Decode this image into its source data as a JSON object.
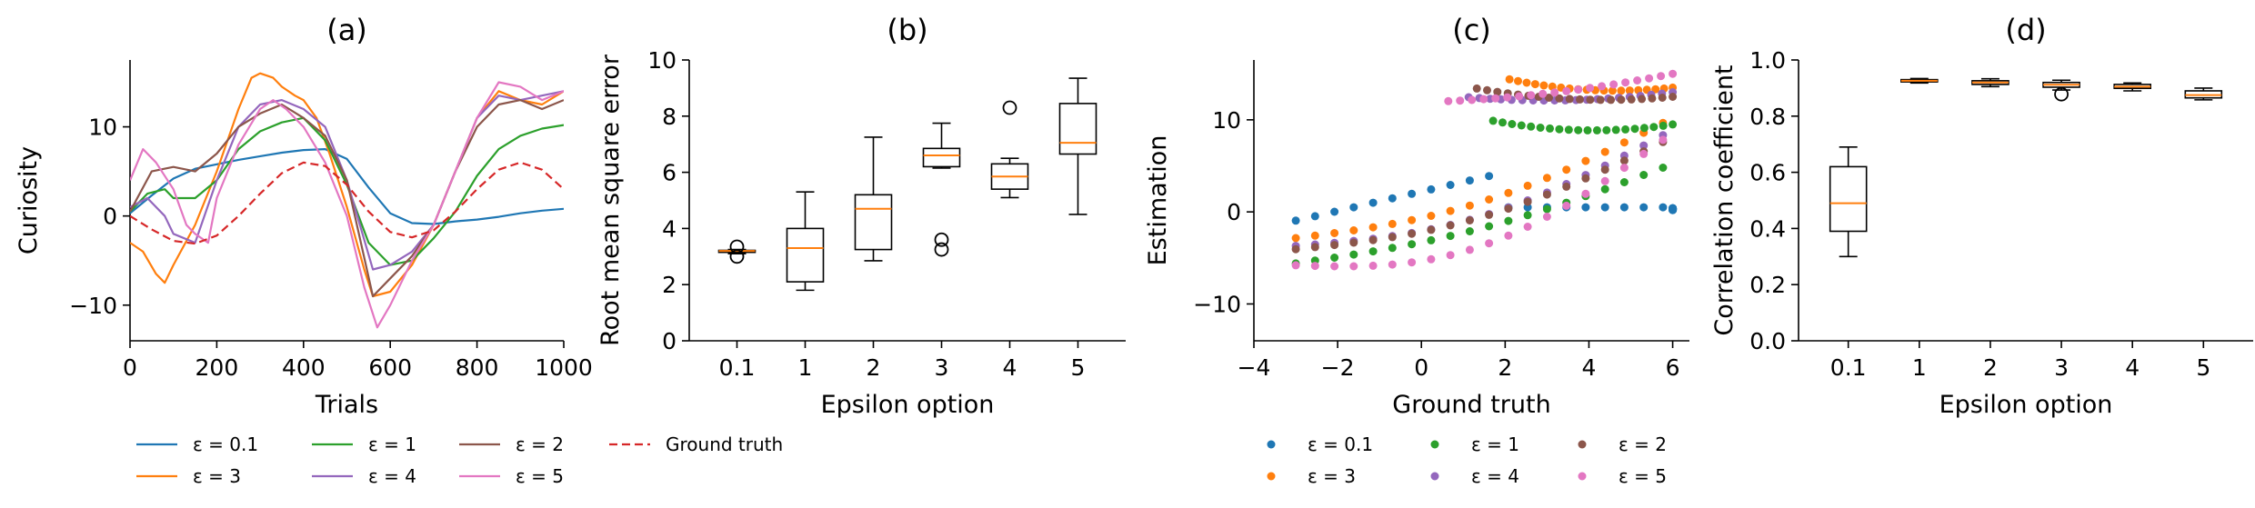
{
  "colors": {
    "blue": "#1f77b4",
    "orange": "#ff7f0e",
    "green": "#2ca02c",
    "red": "#d62728",
    "purple": "#9467bd",
    "brown": "#8c564b",
    "pink": "#e377c2",
    "black": "#000000"
  },
  "chart_data": [
    {
      "id": "a",
      "type": "line",
      "title": "(a)",
      "xlabel": "Trials",
      "ylabel": "Curiosity",
      "xlim": [
        0,
        1000
      ],
      "ylim": [
        -14,
        17.5
      ],
      "xticks": [
        0,
        200,
        400,
        600,
        800,
        1000
      ],
      "xtick_labels": [
        "0",
        "200",
        "400",
        "600",
        "800",
        "1000"
      ],
      "yticks": [
        -10,
        0,
        10
      ],
      "ytick_labels": [
        "−10",
        "0",
        "10"
      ],
      "legend_position": "below",
      "series": [
        {
          "name": "ε = 0.1",
          "color": "blue",
          "dash": false,
          "x": [
            0,
            50,
            100,
            150,
            200,
            250,
            300,
            350,
            400,
            450,
            500,
            550,
            600,
            650,
            700,
            750,
            800,
            850,
            900,
            950,
            1000
          ],
          "y": [
            0.3,
            2.3,
            4.2,
            5.3,
            5.8,
            6.3,
            6.7,
            7.1,
            7.4,
            7.5,
            6.4,
            3.2,
            0.3,
            -0.8,
            -0.9,
            -0.6,
            -0.4,
            -0.1,
            0.3,
            0.6,
            0.8
          ]
        },
        {
          "name": "ε = 3",
          "color": "orange",
          "dash": false,
          "x": [
            0,
            30,
            60,
            80,
            100,
            150,
            200,
            250,
            280,
            300,
            330,
            350,
            380,
            400,
            430,
            460,
            500,
            540,
            560,
            600,
            650,
            700,
            750,
            800,
            850,
            900,
            950,
            1000
          ],
          "y": [
            -3,
            -4,
            -6.5,
            -7.5,
            -5.5,
            -1,
            5,
            12,
            15.5,
            16,
            15.5,
            14.5,
            13.5,
            13,
            11,
            7,
            1,
            -6,
            -9,
            -8.5,
            -5.5,
            -1,
            5,
            11,
            14,
            13,
            12.5,
            14
          ]
        },
        {
          "name": "ε = 1",
          "color": "green",
          "dash": false,
          "x": [
            0,
            40,
            80,
            100,
            150,
            200,
            250,
            300,
            350,
            400,
            450,
            500,
            550,
            600,
            650,
            700,
            750,
            800,
            850,
            900,
            950,
            1000
          ],
          "y": [
            0.5,
            2.5,
            3,
            2,
            2,
            4,
            7.5,
            9.5,
            10.5,
            11,
            8.5,
            3.5,
            -3,
            -5.5,
            -5,
            -2.5,
            0.5,
            4.5,
            7.5,
            9,
            9.8,
            10.2
          ]
        },
        {
          "name": "ε = 4",
          "color": "purple",
          "dash": false,
          "x": [
            0,
            40,
            80,
            100,
            150,
            200,
            250,
            300,
            350,
            400,
            450,
            500,
            560,
            600,
            650,
            700,
            750,
            800,
            850,
            900,
            950,
            1000
          ],
          "y": [
            1,
            2,
            0,
            -2,
            -3,
            4,
            10,
            12.5,
            13,
            12,
            10,
            4,
            -6,
            -5.5,
            -4,
            -1,
            5,
            11,
            13.5,
            13,
            13.5,
            14
          ]
        },
        {
          "name": "ε = 2",
          "color": "brown",
          "dash": false,
          "x": [
            0,
            50,
            100,
            150,
            200,
            250,
            300,
            350,
            400,
            450,
            500,
            560,
            600,
            650,
            700,
            750,
            800,
            850,
            900,
            950,
            1000
          ],
          "y": [
            0.5,
            5,
            5.5,
            5,
            7,
            10,
            11.5,
            12.5,
            11,
            9,
            4,
            -9,
            -7,
            -4.5,
            -1,
            5,
            10,
            12.5,
            13,
            12,
            13
          ]
        },
        {
          "name": "ε = 5",
          "color": "pink",
          "dash": false,
          "x": [
            0,
            30,
            60,
            100,
            130,
            150,
            180,
            200,
            250,
            300,
            330,
            360,
            400,
            450,
            500,
            540,
            570,
            600,
            650,
            700,
            750,
            800,
            850,
            900,
            950,
            1000
          ],
          "y": [
            4,
            7.5,
            6,
            3,
            -1,
            -2,
            -3,
            2,
            8,
            12,
            13,
            12,
            10,
            6,
            0,
            -8,
            -12.5,
            -10,
            -5,
            -1,
            5,
            11,
            15,
            14.5,
            13,
            14
          ]
        },
        {
          "name": "Ground truth",
          "color": "red",
          "dash": true,
          "x": [
            0,
            50,
            100,
            150,
            200,
            250,
            300,
            350,
            400,
            450,
            500,
            550,
            600,
            650,
            700,
            750,
            800,
            850,
            900,
            950,
            1000
          ],
          "y": [
            0,
            -1.5,
            -2.8,
            -3.1,
            -2.2,
            0,
            2.5,
            4.8,
            6,
            5.6,
            3.5,
            0.5,
            -1.8,
            -2.4,
            -1.6,
            0.5,
            3,
            5.2,
            6,
            5.2,
            3
          ]
        }
      ]
    },
    {
      "id": "b",
      "type": "box",
      "title": "(b)",
      "xlabel": "Epsilon option",
      "ylabel": "Root mean square error",
      "ylim": [
        0,
        10
      ],
      "yticks": [
        0,
        2,
        4,
        6,
        8,
        10
      ],
      "ytick_labels": [
        "0",
        "2",
        "4",
        "6",
        "8",
        "10"
      ],
      "categories": [
        "0.1",
        "1",
        "2",
        "3",
        "4",
        "5"
      ],
      "boxes": [
        {
          "whislo": 3.1,
          "q1": 3.15,
          "med": 3.2,
          "q3": 3.22,
          "whishi": 3.25,
          "fliers": [
            3.0,
            3.35
          ]
        },
        {
          "whislo": 1.8,
          "q1": 2.1,
          "med": 3.3,
          "q3": 4.0,
          "whishi": 5.3,
          "fliers": []
        },
        {
          "whislo": 2.85,
          "q1": 3.25,
          "med": 4.7,
          "q3": 5.2,
          "whishi": 7.25,
          "fliers": []
        },
        {
          "whislo": 6.15,
          "q1": 6.2,
          "med": 6.6,
          "q3": 6.85,
          "whishi": 7.75,
          "fliers": [
            3.25,
            3.6
          ]
        },
        {
          "whislo": 5.1,
          "q1": 5.4,
          "med": 5.85,
          "q3": 6.3,
          "whishi": 6.5,
          "fliers": [
            8.3
          ]
        },
        {
          "whislo": 4.5,
          "q1": 6.65,
          "med": 7.05,
          "q3": 8.45,
          "whishi": 9.35,
          "fliers": []
        }
      ]
    },
    {
      "id": "c",
      "type": "scatter",
      "title": "(c)",
      "xlabel": "Ground truth",
      "ylabel": "Estimation",
      "xlim": [
        -4,
        6.4
      ],
      "ylim": [
        -14,
        16.5
      ],
      "xticks": [
        -4,
        -2,
        0,
        2,
        4,
        6
      ],
      "xtick_labels": [
        "−4",
        "−2",
        "0",
        "2",
        "4",
        "6"
      ],
      "yticks": [
        -10,
        0,
        10
      ],
      "ytick_labels": [
        "−10",
        "0",
        "10"
      ],
      "legend_position": "below",
      "series": [
        {
          "name": "ε = 0.1",
          "color": "blue",
          "slope": 1.05,
          "offset": 3.8,
          "dip": 0,
          "upper": [
            0,
            0,
            0
          ],
          "top": [
            6,
            0.3
          ]
        },
        {
          "name": "ε = 3",
          "color": "orange",
          "slope": 1.45,
          "offset": 1.5,
          "dip": 2.5,
          "upper": [
            14.5,
            12.5,
            13.5
          ],
          "top": [
            2,
            5.8
          ]
        },
        {
          "name": "ε = 1",
          "color": "green",
          "slope": 1.2,
          "offset": -2,
          "dip": 1.5,
          "upper": [
            10,
            8,
            9.5
          ],
          "top": [
            1.6,
            3.6
          ]
        },
        {
          "name": "ε = 4",
          "color": "purple",
          "slope": 1.4,
          "offset": 0.5,
          "dip": 3,
          "upper": [
            12.5,
            11.5,
            13
          ],
          "top": [
            1,
            4
          ]
        },
        {
          "name": "ε = 2",
          "color": "brown",
          "slope": 1.35,
          "offset": 0,
          "dip": 2.5,
          "upper": [
            13.5,
            11.5,
            12.5
          ],
          "top": [
            1.2,
            4.2
          ]
        },
        {
          "name": "ε = 5",
          "color": "pink",
          "slope": 1.6,
          "offset": -1,
          "dip": 5,
          "upper": [
            12,
            12.5,
            15
          ],
          "top": [
            0.5,
            4.5
          ]
        }
      ]
    },
    {
      "id": "d",
      "type": "box",
      "title": "(d)",
      "xlabel": "Epsilon option",
      "ylabel": "Correlation coefficient",
      "ylim": [
        0,
        1
      ],
      "yticks": [
        0,
        0.2,
        0.4,
        0.6,
        0.8,
        1.0
      ],
      "ytick_labels": [
        "0.0",
        "0.2",
        "0.4",
        "0.6",
        "0.8",
        "1.0"
      ],
      "categories": [
        "0.1",
        "1",
        "2",
        "3",
        "4",
        "5"
      ],
      "boxes": [
        {
          "whislo": 0.3,
          "q1": 0.39,
          "med": 0.49,
          "q3": 0.62,
          "whishi": 0.69,
          "fliers": []
        },
        {
          "whislo": 0.918,
          "q1": 0.922,
          "med": 0.926,
          "q3": 0.93,
          "whishi": 0.934,
          "fliers": []
        },
        {
          "whislo": 0.905,
          "q1": 0.913,
          "med": 0.92,
          "q3": 0.926,
          "whishi": 0.933,
          "fliers": []
        },
        {
          "whislo": 0.893,
          "q1": 0.903,
          "med": 0.912,
          "q3": 0.92,
          "whishi": 0.928,
          "fliers": [
            0.878
          ]
        },
        {
          "whislo": 0.89,
          "q1": 0.899,
          "med": 0.905,
          "q3": 0.913,
          "whishi": 0.918,
          "fliers": []
        },
        {
          "whislo": 0.858,
          "q1": 0.865,
          "med": 0.875,
          "q3": 0.89,
          "whishi": 0.9,
          "fliers": []
        }
      ]
    }
  ]
}
